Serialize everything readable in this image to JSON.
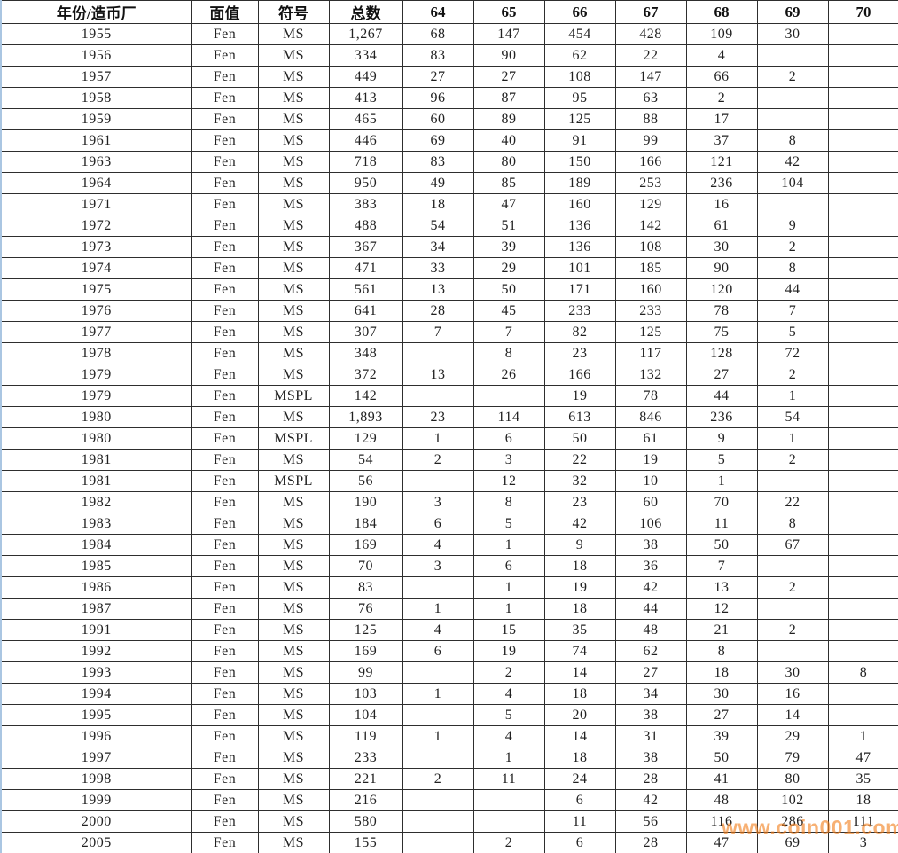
{
  "table": {
    "columns": [
      "年份/造币厂",
      "面值",
      "符号",
      "总数",
      "64",
      "65",
      "66",
      "67",
      "68",
      "69",
      "70"
    ],
    "rows": [
      [
        "1955",
        "Fen",
        "MS",
        "1,267",
        "68",
        "147",
        "454",
        "428",
        "109",
        "30",
        ""
      ],
      [
        "1956",
        "Fen",
        "MS",
        "334",
        "83",
        "90",
        "62",
        "22",
        "4",
        "",
        ""
      ],
      [
        "1957",
        "Fen",
        "MS",
        "449",
        "27",
        "27",
        "108",
        "147",
        "66",
        "2",
        ""
      ],
      [
        "1958",
        "Fen",
        "MS",
        "413",
        "96",
        "87",
        "95",
        "63",
        "2",
        "",
        ""
      ],
      [
        "1959",
        "Fen",
        "MS",
        "465",
        "60",
        "89",
        "125",
        "88",
        "17",
        "",
        ""
      ],
      [
        "1961",
        "Fen",
        "MS",
        "446",
        "69",
        "40",
        "91",
        "99",
        "37",
        "8",
        ""
      ],
      [
        "1963",
        "Fen",
        "MS",
        "718",
        "83",
        "80",
        "150",
        "166",
        "121",
        "42",
        ""
      ],
      [
        "1964",
        "Fen",
        "MS",
        "950",
        "49",
        "85",
        "189",
        "253",
        "236",
        "104",
        ""
      ],
      [
        "1971",
        "Fen",
        "MS",
        "383",
        "18",
        "47",
        "160",
        "129",
        "16",
        "",
        ""
      ],
      [
        "1972",
        "Fen",
        "MS",
        "488",
        "54",
        "51",
        "136",
        "142",
        "61",
        "9",
        ""
      ],
      [
        "1973",
        "Fen",
        "MS",
        "367",
        "34",
        "39",
        "136",
        "108",
        "30",
        "2",
        ""
      ],
      [
        "1974",
        "Fen",
        "MS",
        "471",
        "33",
        "29",
        "101",
        "185",
        "90",
        "8",
        ""
      ],
      [
        "1975",
        "Fen",
        "MS",
        "561",
        "13",
        "50",
        "171",
        "160",
        "120",
        "44",
        ""
      ],
      [
        "1976",
        "Fen",
        "MS",
        "641",
        "28",
        "45",
        "233",
        "233",
        "78",
        "7",
        ""
      ],
      [
        "1977",
        "Fen",
        "MS",
        "307",
        "7",
        "7",
        "82",
        "125",
        "75",
        "5",
        ""
      ],
      [
        "1978",
        "Fen",
        "MS",
        "348",
        "",
        "8",
        "23",
        "117",
        "128",
        "72",
        ""
      ],
      [
        "1979",
        "Fen",
        "MS",
        "372",
        "13",
        "26",
        "166",
        "132",
        "27",
        "2",
        ""
      ],
      [
        "1979",
        "Fen",
        "MSPL",
        "142",
        "",
        "",
        "19",
        "78",
        "44",
        "1",
        ""
      ],
      [
        "1980",
        "Fen",
        "MS",
        "1,893",
        "23",
        "114",
        "613",
        "846",
        "236",
        "54",
        ""
      ],
      [
        "1980",
        "Fen",
        "MSPL",
        "129",
        "1",
        "6",
        "50",
        "61",
        "9",
        "1",
        ""
      ],
      [
        "1981",
        "Fen",
        "MS",
        "54",
        "2",
        "3",
        "22",
        "19",
        "5",
        "2",
        ""
      ],
      [
        "1981",
        "Fen",
        "MSPL",
        "56",
        "",
        "12",
        "32",
        "10",
        "1",
        "",
        ""
      ],
      [
        "1982",
        "Fen",
        "MS",
        "190",
        "3",
        "8",
        "23",
        "60",
        "70",
        "22",
        ""
      ],
      [
        "1983",
        "Fen",
        "MS",
        "184",
        "6",
        "5",
        "42",
        "106",
        "11",
        "8",
        ""
      ],
      [
        "1984",
        "Fen",
        "MS",
        "169",
        "4",
        "1",
        "9",
        "38",
        "50",
        "67",
        ""
      ],
      [
        "1985",
        "Fen",
        "MS",
        "70",
        "3",
        "6",
        "18",
        "36",
        "7",
        "",
        ""
      ],
      [
        "1986",
        "Fen",
        "MS",
        "83",
        "",
        "1",
        "19",
        "42",
        "13",
        "2",
        ""
      ],
      [
        "1987",
        "Fen",
        "MS",
        "76",
        "1",
        "1",
        "18",
        "44",
        "12",
        "",
        ""
      ],
      [
        "1991",
        "Fen",
        "MS",
        "125",
        "4",
        "15",
        "35",
        "48",
        "21",
        "2",
        ""
      ],
      [
        "1992",
        "Fen",
        "MS",
        "169",
        "6",
        "19",
        "74",
        "62",
        "8",
        "",
        ""
      ],
      [
        "1993",
        "Fen",
        "MS",
        "99",
        "",
        "2",
        "14",
        "27",
        "18",
        "30",
        "8"
      ],
      [
        "1994",
        "Fen",
        "MS",
        "103",
        "1",
        "4",
        "18",
        "34",
        "30",
        "16",
        ""
      ],
      [
        "1995",
        "Fen",
        "MS",
        "104",
        "",
        "5",
        "20",
        "38",
        "27",
        "14",
        ""
      ],
      [
        "1996",
        "Fen",
        "MS",
        "119",
        "1",
        "4",
        "14",
        "31",
        "39",
        "29",
        "1"
      ],
      [
        "1997",
        "Fen",
        "MS",
        "233",
        "",
        "1",
        "18",
        "38",
        "50",
        "79",
        "47"
      ],
      [
        "1998",
        "Fen",
        "MS",
        "221",
        "2",
        "11",
        "24",
        "28",
        "41",
        "80",
        "35"
      ],
      [
        "1999",
        "Fen",
        "MS",
        "216",
        "",
        "",
        "6",
        "42",
        "48",
        "102",
        "18"
      ],
      [
        "2000",
        "Fen",
        "MS",
        "580",
        "",
        "",
        "11",
        "56",
        "116",
        "286",
        "111"
      ],
      [
        "2005",
        "Fen",
        "MS",
        "155",
        "",
        "2",
        "6",
        "28",
        "47",
        "69",
        "3"
      ]
    ]
  },
  "watermark": {
    "text": "www.coin001.com",
    "color": "#f2801d"
  },
  "colors": {
    "border": "#2e2e2e",
    "left_edge_gridline": "#aac6e2",
    "background": "#ffffff",
    "text": "#212121"
  }
}
